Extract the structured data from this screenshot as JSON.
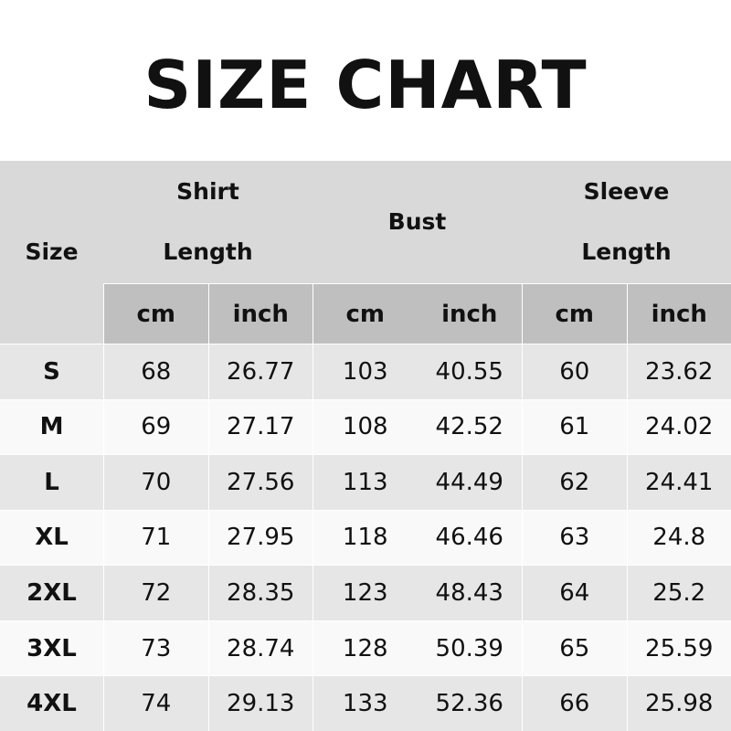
{
  "title": "SIZE CHART",
  "headers": {
    "size": "Size",
    "shirt_length": [
      "Shirt",
      "Length"
    ],
    "bust": "Bust",
    "sleeve_length": [
      "Sleeve",
      "Length"
    ]
  },
  "units": [
    "cm",
    "inch",
    "cm",
    "inch",
    "cm",
    "inch"
  ],
  "rows": [
    [
      "S",
      "68",
      "26.77",
      "103",
      "40.55",
      "60",
      "23.62"
    ],
    [
      "M",
      "69",
      "27.17",
      "108",
      "42.52",
      "61",
      "24.02"
    ],
    [
      "L",
      "70",
      "27.56",
      "113",
      "44.49",
      "62",
      "24.41"
    ],
    [
      "XL",
      "71",
      "27.95",
      "118",
      "46.46",
      "63",
      "24.8"
    ],
    [
      "2XL",
      "72",
      "28.35",
      "123",
      "48.43",
      "64",
      "25.2"
    ],
    [
      "3XL",
      "73",
      "28.74",
      "128",
      "50.39",
      "65",
      "25.59"
    ],
    [
      "4XL",
      "74",
      "29.13",
      "133",
      "52.36",
      "66",
      "25.98"
    ]
  ]
}
